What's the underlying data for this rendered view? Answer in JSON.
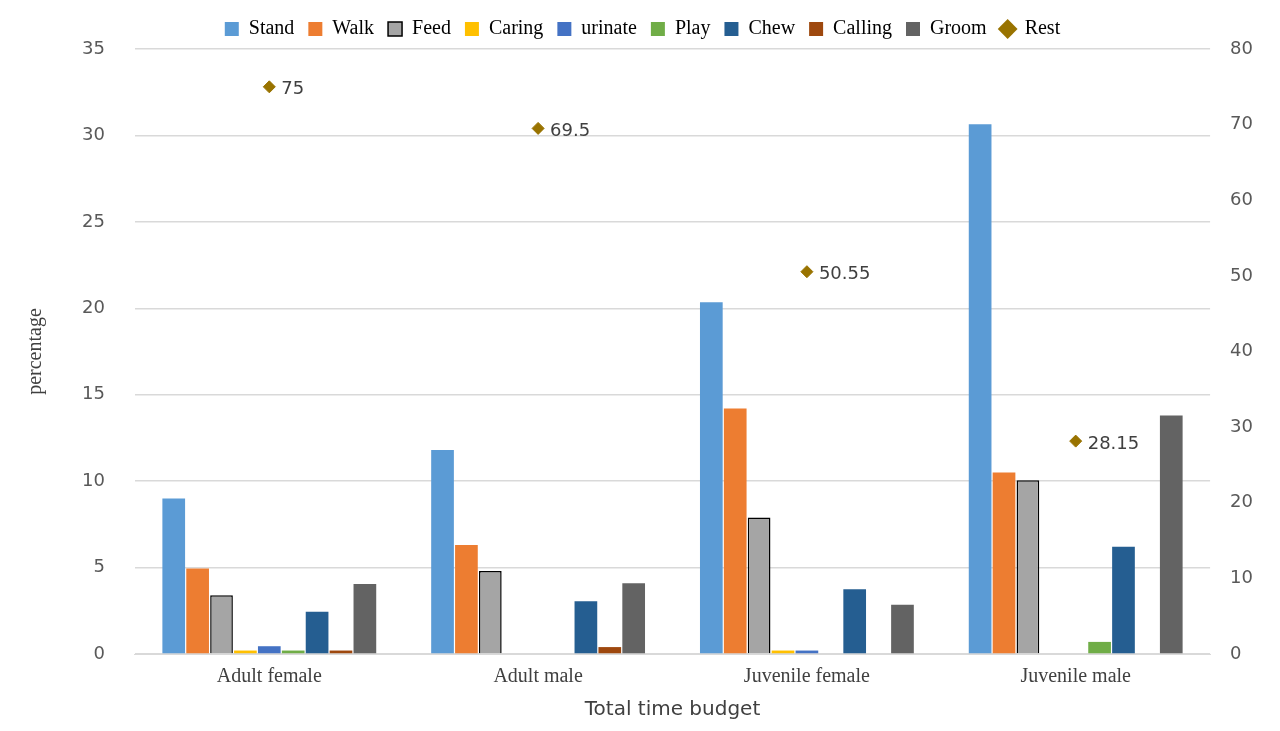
{
  "chart_data": {
    "type": "bar",
    "xlabel": "Total time budget",
    "ylabel": "percentage",
    "categories": [
      "Adult female",
      "Adult male",
      "Juvenile female",
      "Juvenile male"
    ],
    "ylim": [
      0,
      35
    ],
    "yticks": [
      0,
      5,
      10,
      15,
      20,
      25,
      30,
      35
    ],
    "y2lim": [
      0,
      80
    ],
    "y2ticks": [
      0,
      10,
      20,
      30,
      40,
      50,
      60,
      70,
      80
    ],
    "grid": "y",
    "legend": "top",
    "series": [
      {
        "name": "Stand",
        "color": "#5b9bd5",
        "values": [
          9.0,
          11.8,
          20.35,
          30.65
        ]
      },
      {
        "name": "Walk",
        "color": "#ed7d31",
        "values": [
          4.95,
          6.3,
          14.2,
          10.5
        ]
      },
      {
        "name": "Feed",
        "color": "#a5a5a5",
        "values": [
          3.4,
          4.8,
          7.9,
          10.05
        ]
      },
      {
        "name": "Caring",
        "color": "#ffc000",
        "values": [
          0.2,
          0,
          0.2,
          0
        ]
      },
      {
        "name": "urinate",
        "color": "#4472c4",
        "values": [
          0.45,
          0,
          0.2,
          0
        ]
      },
      {
        "name": "Play",
        "color": "#70ad47",
        "values": [
          0.2,
          0,
          0,
          0.7
        ]
      },
      {
        "name": "Chew",
        "color": "#255e91",
        "values": [
          2.45,
          3.05,
          3.75,
          6.2
        ]
      },
      {
        "name": "Calling",
        "color": "#9e480e",
        "values": [
          0.2,
          0.4,
          0,
          0
        ]
      },
      {
        "name": "Groom",
        "color": "#636363",
        "values": [
          4.05,
          4.1,
          2.85,
          13.8
        ]
      },
      {
        "name": "Rest",
        "color": "#997300",
        "type": "scatter",
        "axis": "y2",
        "marker": "diamond",
        "values": [
          75,
          69.5,
          50.55,
          28.15
        ],
        "value_labels": [
          "75",
          "69.5",
          "50.55",
          "28.15"
        ]
      }
    ]
  }
}
